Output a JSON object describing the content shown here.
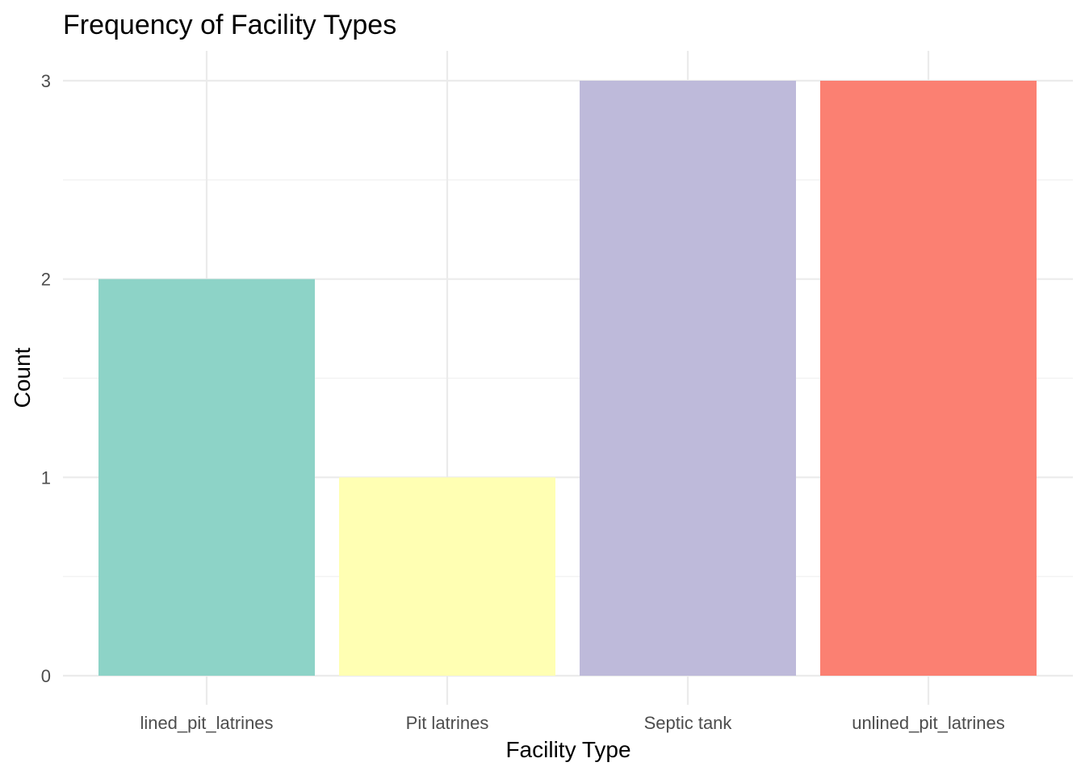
{
  "chart_data": {
    "type": "bar",
    "title": "Frequency of Facility Types",
    "xlabel": "Facility Type",
    "ylabel": "Count",
    "categories": [
      "lined_pit_latrines",
      "Pit latrines",
      "Septic tank",
      "unlined_pit_latrines"
    ],
    "values": [
      2,
      1,
      3,
      3
    ],
    "colors": [
      "#8DD3C7",
      "#FFFFB3",
      "#BEBADA",
      "#FB8072"
    ],
    "ylim": [
      0,
      3
    ],
    "y_ticks": [
      "0",
      "1",
      "2",
      "3"
    ],
    "grid": true,
    "legend": "none"
  }
}
